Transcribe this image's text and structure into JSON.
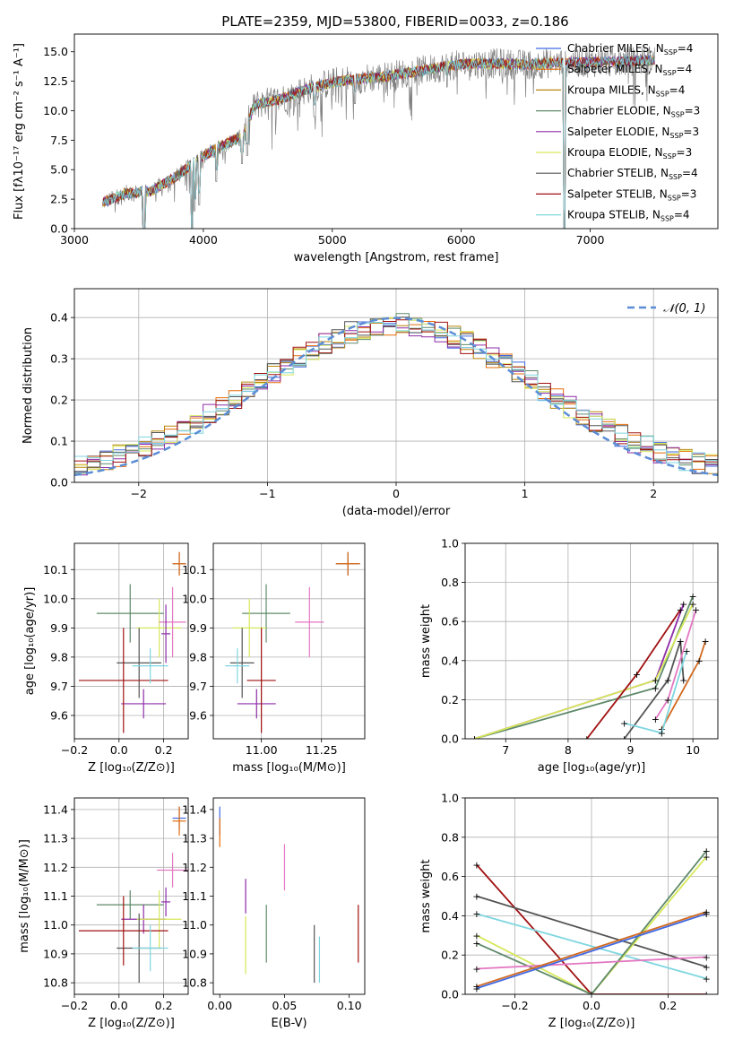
{
  "figure_title": "PLATE=2359, MJD=53800, FIBERID=0033, z=0.186",
  "colors": {
    "Chabrier MILES": "#4169e1",
    "Salpeter MILES": "#e46c0a",
    "Kroupa MILES": "#b8860b",
    "Chabrier ELODIE": "#5f8a6a",
    "Salpeter ELODIE": "#8e2ca8",
    "Kroupa ELODIE": "#d6e85a",
    "Chabrier STELIB": "#555555",
    "Salpeter STELIB": "#a01010",
    "Kroupa STELIB": "#7fd6e0",
    "pink": "#e377c2",
    "orange": "#d2691e",
    "spectrum_gray": "#808080",
    "grid": "#b0b0b0",
    "normal_curve": "#5b8dd6"
  },
  "chart_data": [
    {
      "type": "line",
      "title": "PLATE=2359, MJD=53800, FIBERID=0033, z=0.186",
      "xlabel": "wavelength [Angstrom, rest frame]",
      "ylabel": "Flux [fλ10⁻¹⁷ erg cm⁻² s⁻¹ A⁻¹]",
      "xlim": [
        3000,
        7990
      ],
      "ylim": [
        0,
        16.5
      ],
      "xticks": [
        "3000",
        "4000",
        "5000",
        "6000",
        "7000"
      ],
      "yticks": [
        "0.0",
        "2.5",
        "5.0",
        "7.5",
        "10.0",
        "12.5",
        "15.0"
      ],
      "legend_position": "upper-right",
      "legend": [
        {
          "label": "Chabrier MILES, N",
          "sub": "SSP",
          "tail": "=4"
        },
        {
          "label": "Salpeter MILES, N",
          "sub": "SSP",
          "tail": "=4"
        },
        {
          "label": "Kroupa MILES, N",
          "sub": "SSP",
          "tail": "=4"
        },
        {
          "label": "Chabrier ELODIE, N",
          "sub": "SSP",
          "tail": "=3"
        },
        {
          "label": "Salpeter ELODIE, N",
          "sub": "SSP",
          "tail": "=3"
        },
        {
          "label": "Kroupa ELODIE, N",
          "sub": "SSP",
          "tail": "=3"
        },
        {
          "label": "Chabrier STELIB, N",
          "sub": "SSP",
          "tail": "=4"
        },
        {
          "label": "Salpeter STELIB, N",
          "sub": "SSP",
          "tail": "=3"
        },
        {
          "label": "Kroupa STELIB, N",
          "sub": "SSP",
          "tail": "=4"
        }
      ],
      "continuum": [
        [
          3220,
          2.2
        ],
        [
          3400,
          3.0
        ],
        [
          3600,
          3.2
        ],
        [
          3800,
          4.5
        ],
        [
          3950,
          5.8
        ],
        [
          4100,
          6.8
        ],
        [
          4300,
          7.8
        ],
        [
          4400,
          10.5
        ],
        [
          4600,
          11.0
        ],
        [
          4800,
          11.8
        ],
        [
          5000,
          12.4
        ],
        [
          5200,
          12.7
        ],
        [
          5400,
          12.9
        ],
        [
          5700,
          13.4
        ],
        [
          5900,
          13.8
        ],
        [
          6100,
          14.0
        ],
        [
          6300,
          14.0
        ],
        [
          6500,
          13.9
        ],
        [
          6800,
          14.1
        ],
        [
          7000,
          14.1
        ],
        [
          7300,
          14.2
        ],
        [
          7500,
          14.3
        ]
      ],
      "absorption_lines": [
        [
          3540,
          0
        ],
        [
          3910,
          0
        ],
        [
          3933,
          1.5
        ],
        [
          3968,
          2.0
        ],
        [
          4101,
          4.0
        ],
        [
          4300,
          5.5
        ],
        [
          4340,
          6.2
        ],
        [
          4861,
          9.5
        ],
        [
          5175,
          10.6
        ],
        [
          5890,
          12.0
        ],
        [
          6800,
          0
        ]
      ]
    },
    {
      "type": "histogram",
      "xlabel": "(data-model)/error",
      "ylabel": "Normed distribution",
      "xlim": [
        -2.5,
        2.5
      ],
      "ylim": [
        0,
        0.47
      ],
      "xticks": [
        "−2",
        "−1",
        "0",
        "1",
        "2"
      ],
      "yticks": [
        "0.0",
        "0.1",
        "0.2",
        "0.3",
        "0.4"
      ],
      "legend_position": "upper-right",
      "legend_label": "𝒩(0, 1)",
      "bin_width": 0.1,
      "bin_start": -2.5
    },
    {
      "type": "scatter",
      "name": "age_vs_Z",
      "xlabel": "Z [log₁₀(Z/Z⊙)]",
      "ylabel": "age  [log₁₀(age/yr)]",
      "xlim": [
        -0.2,
        0.31
      ],
      "ylim": [
        9.52,
        10.19
      ],
      "xticks": [
        "−0.2",
        "0.0",
        "0.2"
      ],
      "yticks": [
        "9.6",
        "9.7",
        "9.8",
        "9.9",
        "10.0",
        "10.1"
      ]
    },
    {
      "type": "scatter",
      "name": "age_vs_mass",
      "xlabel": "mass [log₁₀(M/M⊙)]",
      "xlim": [
        10.8,
        11.43
      ],
      "ylim": [
        9.52,
        10.19
      ],
      "xticks": [
        "11.00",
        "11.25"
      ],
      "yticks": [
        "9.6",
        "9.7",
        "9.8",
        "9.9",
        "10.0",
        "10.1"
      ]
    },
    {
      "type": "line",
      "name": "mass_weight_vs_age",
      "xlabel": "age  [log₁₀(age/yr)]",
      "ylabel": "mass weight",
      "xlim": [
        6.35,
        10.4
      ],
      "ylim": [
        0,
        1
      ],
      "xticks": [
        "7",
        "8",
        "9",
        "10"
      ],
      "yticks": [
        "0.0",
        "0.2",
        "0.4",
        "0.6",
        "0.8",
        "1.0"
      ]
    },
    {
      "type": "scatter",
      "name": "mass_vs_Z",
      "xlabel": "Z [log₁₀(Z/Z⊙)]",
      "ylabel": "mass [log₁₀(M/M⊙)]",
      "xlim": [
        -0.2,
        0.31
      ],
      "ylim": [
        10.76,
        11.44
      ],
      "xticks": [
        "−0.2",
        "0.0",
        "0.2"
      ],
      "yticks": [
        "10.8",
        "10.9",
        "11.0",
        "11.1",
        "11.2",
        "11.3",
        "11.4"
      ]
    },
    {
      "type": "scatter",
      "name": "mass_vs_EBV",
      "xlabel": "E(B-V)",
      "xlim": [
        -0.005,
        0.112
      ],
      "ylim": [
        10.76,
        11.44
      ],
      "xticks": [
        "0.00",
        "0.05",
        "0.10"
      ],
      "yticks": [
        "10.8",
        "10.9",
        "11.0",
        "11.1",
        "11.2",
        "11.3",
        "11.4"
      ]
    },
    {
      "type": "line",
      "name": "mass_weight_vs_Z",
      "xlabel": "Z [log₁₀(Z/Z⊙)]",
      "ylabel": "mass weight",
      "xlim": [
        -0.33,
        0.33
      ],
      "ylim": [
        0,
        1
      ],
      "xticks": [
        "−0.2",
        "0.0",
        "0.2"
      ],
      "yticks": [
        "0.0",
        "0.2",
        "0.4",
        "0.6",
        "0.8",
        "1.0"
      ]
    }
  ]
}
